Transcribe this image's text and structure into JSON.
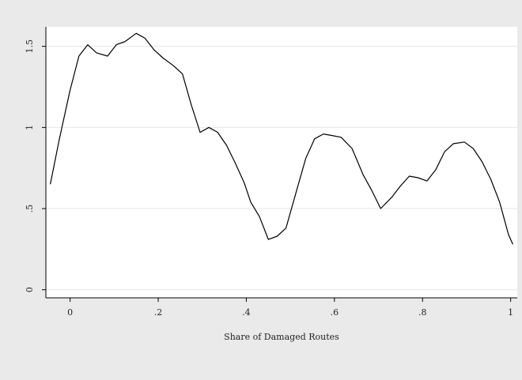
{
  "chart_data": {
    "type": "line",
    "title": "",
    "xlabel": "Share of Damaged Routes",
    "ylabel": "",
    "xlim": [
      -0.055,
      1.015
    ],
    "ylim": [
      -0.05,
      1.62
    ],
    "xticks": [
      0,
      0.2,
      0.4,
      0.6,
      0.8,
      1
    ],
    "xtick_labels": [
      "0",
      ".2",
      ".4",
      ".6",
      ".8",
      "1"
    ],
    "yticks": [
      0,
      0.5,
      1,
      1.5
    ],
    "ytick_labels": [
      "0",
      ".5",
      "1",
      "1.5"
    ],
    "grid": "horizontal",
    "legend": "none",
    "colors": {
      "background": "#eaeaea",
      "plot_background": "#ffffff",
      "line": "#000000",
      "grid": "#e6e6e6"
    },
    "series": [
      {
        "x": [
          -0.045,
          -0.025,
          0.0,
          0.02,
          0.04,
          0.06,
          0.085,
          0.105,
          0.125,
          0.15,
          0.17,
          0.19,
          0.21,
          0.235,
          0.255,
          0.275,
          0.295,
          0.315,
          0.335,
          0.355,
          0.375,
          0.395,
          0.41,
          0.43,
          0.45,
          0.47,
          0.49,
          0.515,
          0.535,
          0.555,
          0.575,
          0.595,
          0.615,
          0.64,
          0.665,
          0.685,
          0.705,
          0.73,
          0.75,
          0.77,
          0.79,
          0.81,
          0.83,
          0.85,
          0.87,
          0.895,
          0.915,
          0.935,
          0.955,
          0.975,
          0.995,
          1.005
        ],
        "y": [
          0.65,
          0.92,
          1.23,
          1.44,
          1.51,
          1.46,
          1.44,
          1.51,
          1.53,
          1.58,
          1.55,
          1.48,
          1.43,
          1.38,
          1.33,
          1.14,
          0.97,
          1.0,
          0.97,
          0.89,
          0.78,
          0.66,
          0.54,
          0.45,
          0.31,
          0.33,
          0.38,
          0.62,
          0.81,
          0.93,
          0.96,
          0.95,
          0.94,
          0.87,
          0.71,
          0.61,
          0.5,
          0.57,
          0.64,
          0.7,
          0.69,
          0.67,
          0.74,
          0.85,
          0.9,
          0.91,
          0.87,
          0.79,
          0.68,
          0.54,
          0.34,
          0.28
        ]
      }
    ]
  }
}
